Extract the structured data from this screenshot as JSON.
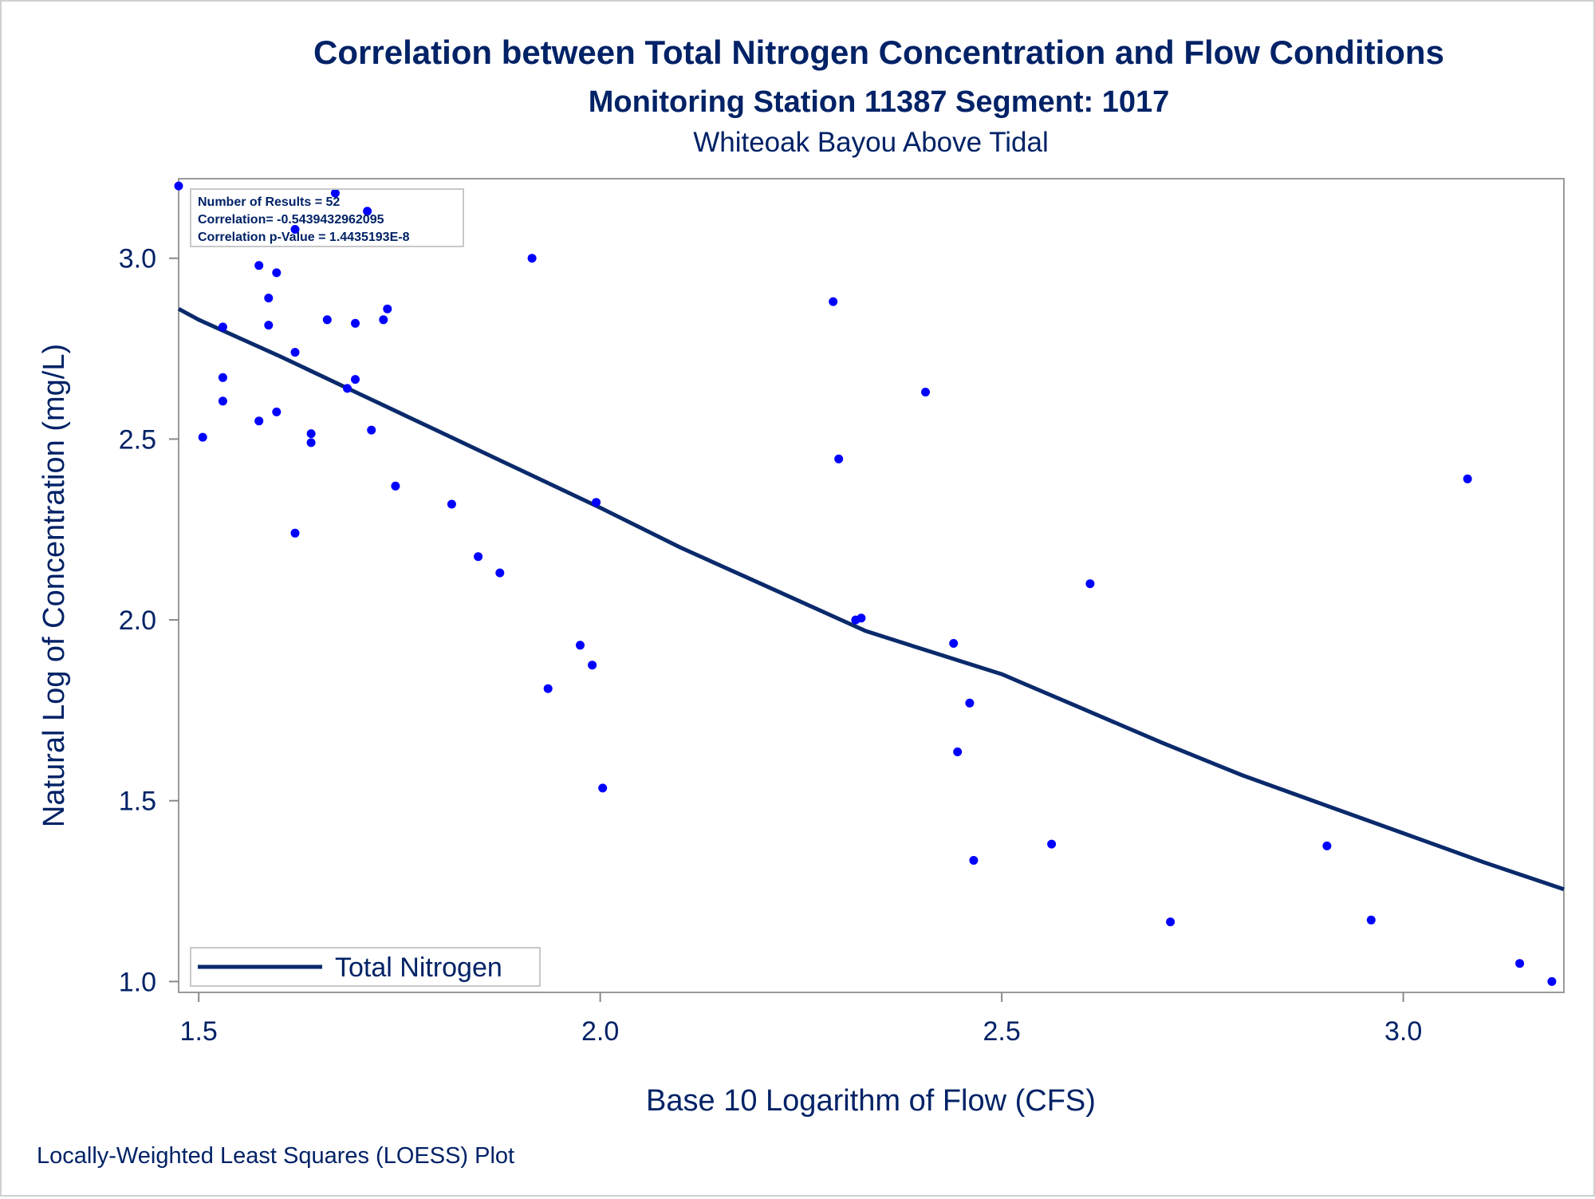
{
  "chart_data": {
    "type": "scatter",
    "title": "Correlation between Total Nitrogen Concentration and Flow Conditions",
    "subtitle": "Monitoring Station 11387 Segment: 1017",
    "subtitle2": "Whiteoak Bayou Above Tidal",
    "xlabel": "Base 10 Logarithm of Flow (CFS)",
    "ylabel": "Natural Log of Concentration (mg/L)",
    "footnote": "Locally-Weighted Least Squares (LOESS) Plot",
    "xlim": [
      1.475,
      3.2
    ],
    "ylim": [
      0.97,
      3.22
    ],
    "xticks": [
      1.5,
      2.0,
      2.5,
      3.0
    ],
    "xtick_labels": [
      "1.5",
      "2.0",
      "2.5",
      "3.0"
    ],
    "yticks": [
      1.0,
      1.5,
      2.0,
      2.5,
      3.0
    ],
    "ytick_labels": [
      "1.0",
      "1.5",
      "2.0",
      "2.5",
      "3.0"
    ],
    "grid": false,
    "stats": [
      "Number of Results = 52",
      "Correlation= -0.5439432962095",
      "Correlation p-Value = 1.4435193E-8"
    ],
    "legend": {
      "position": "bottom-left",
      "entries": [
        "Total Nitrogen"
      ]
    },
    "points": [
      {
        "x": 1.475,
        "y": 3.2
      },
      {
        "x": 1.67,
        "y": 3.18
      },
      {
        "x": 1.71,
        "y": 3.13
      },
      {
        "x": 1.62,
        "y": 3.08
      },
      {
        "x": 1.915,
        "y": 3.0
      },
      {
        "x": 1.575,
        "y": 2.98
      },
      {
        "x": 1.597,
        "y": 2.96
      },
      {
        "x": 1.587,
        "y": 2.89
      },
      {
        "x": 2.29,
        "y": 2.88
      },
      {
        "x": 1.735,
        "y": 2.86
      },
      {
        "x": 1.66,
        "y": 2.83
      },
      {
        "x": 1.73,
        "y": 2.83
      },
      {
        "x": 1.695,
        "y": 2.82
      },
      {
        "x": 1.587,
        "y": 2.815
      },
      {
        "x": 1.53,
        "y": 2.81
      },
      {
        "x": 1.62,
        "y": 2.74
      },
      {
        "x": 1.53,
        "y": 2.67
      },
      {
        "x": 1.695,
        "y": 2.665
      },
      {
        "x": 1.685,
        "y": 2.64
      },
      {
        "x": 2.405,
        "y": 2.63
      },
      {
        "x": 1.53,
        "y": 2.605
      },
      {
        "x": 1.597,
        "y": 2.575
      },
      {
        "x": 1.575,
        "y": 2.55
      },
      {
        "x": 1.715,
        "y": 2.525
      },
      {
        "x": 1.64,
        "y": 2.515
      },
      {
        "x": 1.505,
        "y": 2.505
      },
      {
        "x": 1.64,
        "y": 2.49
      },
      {
        "x": 2.297,
        "y": 2.445
      },
      {
        "x": 3.08,
        "y": 2.39
      },
      {
        "x": 1.745,
        "y": 2.37
      },
      {
        "x": 1.815,
        "y": 2.32
      },
      {
        "x": 1.995,
        "y": 2.325
      },
      {
        "x": 1.62,
        "y": 2.24
      },
      {
        "x": 1.848,
        "y": 2.175
      },
      {
        "x": 1.875,
        "y": 2.13
      },
      {
        "x": 2.61,
        "y": 2.1
      },
      {
        "x": 2.318,
        "y": 2.0
      },
      {
        "x": 2.325,
        "y": 2.005
      },
      {
        "x": 1.975,
        "y": 1.93
      },
      {
        "x": 2.44,
        "y": 1.935
      },
      {
        "x": 1.99,
        "y": 1.875
      },
      {
        "x": 1.935,
        "y": 1.81
      },
      {
        "x": 2.46,
        "y": 1.77
      },
      {
        "x": 2.445,
        "y": 1.635
      },
      {
        "x": 2.003,
        "y": 1.535
      },
      {
        "x": 2.562,
        "y": 1.38
      },
      {
        "x": 2.905,
        "y": 1.375
      },
      {
        "x": 2.465,
        "y": 1.335
      },
      {
        "x": 2.96,
        "y": 1.17
      },
      {
        "x": 2.71,
        "y": 1.165
      },
      {
        "x": 3.145,
        "y": 1.05
      },
      {
        "x": 3.185,
        "y": 1.0
      }
    ],
    "series": [
      {
        "name": "Total Nitrogen",
        "type": "line",
        "x": [
          1.475,
          1.5,
          1.6,
          1.7,
          1.8,
          1.9,
          2.0,
          2.1,
          2.2,
          2.3,
          2.33,
          2.4,
          2.5,
          2.6,
          2.7,
          2.8,
          2.9,
          3.0,
          3.1,
          3.2
        ],
        "y": [
          2.86,
          2.83,
          2.73,
          2.625,
          2.52,
          2.415,
          2.31,
          2.2,
          2.1,
          2.0,
          1.97,
          1.92,
          1.85,
          1.755,
          1.66,
          1.57,
          1.49,
          1.41,
          1.33,
          1.255
        ]
      }
    ],
    "colors": {
      "text": "#002266",
      "line": "#0a2a6b",
      "marker": "#0000ff",
      "axis": "#8a8a8a"
    }
  }
}
